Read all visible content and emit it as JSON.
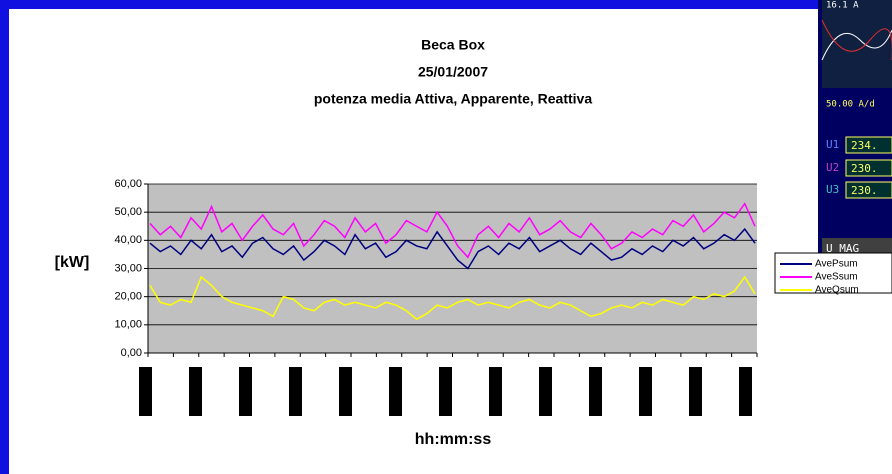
{
  "chart_data": {
    "type": "line",
    "title": [
      "Beca Box",
      "25/01/2007",
      "potenza media Attiva, Apparente, Reattiva"
    ],
    "y_label": "[kW]",
    "x_label": "hh:mm:ss",
    "categories": [
      null,
      null,
      null,
      null,
      null,
      null,
      null,
      null,
      null,
      null,
      null,
      null,
      null,
      null,
      null,
      null,
      null,
      null,
      null,
      null,
      null,
      null,
      null,
      null,
      null,
      null,
      null,
      null,
      null,
      null,
      null,
      null,
      null,
      null,
      null,
      null,
      null,
      null,
      null,
      null,
      null,
      null,
      null,
      null,
      null,
      null,
      null,
      null,
      null,
      null,
      null,
      null,
      null,
      null,
      null,
      null,
      null,
      null,
      null,
      null
    ],
    "series": [
      {
        "name": "AvePsum",
        "color": "#000080",
        "values": [
          39,
          36,
          38,
          35,
          40,
          37,
          42,
          36,
          38,
          34,
          39,
          41,
          37,
          35,
          38,
          33,
          36,
          40,
          38,
          35,
          42,
          37,
          39,
          34,
          36,
          40,
          38,
          37,
          43,
          38,
          33,
          30,
          36,
          38,
          35,
          39,
          37,
          41,
          36,
          38,
          40,
          37,
          35,
          39,
          36,
          33,
          34,
          37,
          35,
          38,
          36,
          40,
          38,
          41,
          37,
          39,
          42,
          40,
          44,
          39
        ]
      },
      {
        "name": "AveSsum",
        "color": "#ff00ff",
        "values": [
          46,
          42,
          45,
          41,
          48,
          44,
          52,
          43,
          46,
          40,
          45,
          49,
          44,
          42,
          46,
          38,
          42,
          47,
          45,
          41,
          48,
          43,
          46,
          39,
          42,
          47,
          45,
          43,
          50,
          45,
          38,
          34,
          42,
          45,
          41,
          46,
          43,
          48,
          42,
          44,
          47,
          43,
          41,
          46,
          42,
          37,
          39,
          43,
          41,
          44,
          42,
          47,
          45,
          49,
          43,
          46,
          50,
          48,
          53,
          45
        ]
      },
      {
        "name": "AveQsum",
        "color": "#ffff00",
        "values": [
          24,
          18,
          17,
          19,
          18,
          27,
          24,
          20,
          18,
          17,
          16,
          15,
          13,
          20,
          19,
          16,
          15,
          18,
          19,
          17,
          18,
          17,
          16,
          18,
          17,
          15,
          12,
          14,
          17,
          16,
          18,
          19,
          17,
          18,
          17,
          16,
          18,
          19,
          17,
          16,
          18,
          17,
          15,
          13,
          14,
          16,
          17,
          16,
          18,
          17,
          19,
          18,
          17,
          20,
          19,
          21,
          20,
          22,
          27,
          21
        ]
      }
    ],
    "ylim": [
      0,
      60
    ],
    "yticks": [
      {
        "value": 0,
        "label": "0,00"
      },
      {
        "value": 10,
        "label": "10,00"
      },
      {
        "value": 20,
        "label": "20,00"
      },
      {
        "value": 30,
        "label": "30,00"
      },
      {
        "value": 40,
        "label": "40,00"
      },
      {
        "value": 50,
        "label": "50,00"
      },
      {
        "value": 60,
        "label": "60,00"
      }
    ],
    "grid": true,
    "plot_background": "#c0c0c0",
    "legend": "right"
  },
  "inset": {
    "current": "16.1 A",
    "scale": "50.00 A/d",
    "u1": "234.",
    "u2": "230.",
    "u3": "230.",
    "mode": "U MAG"
  }
}
